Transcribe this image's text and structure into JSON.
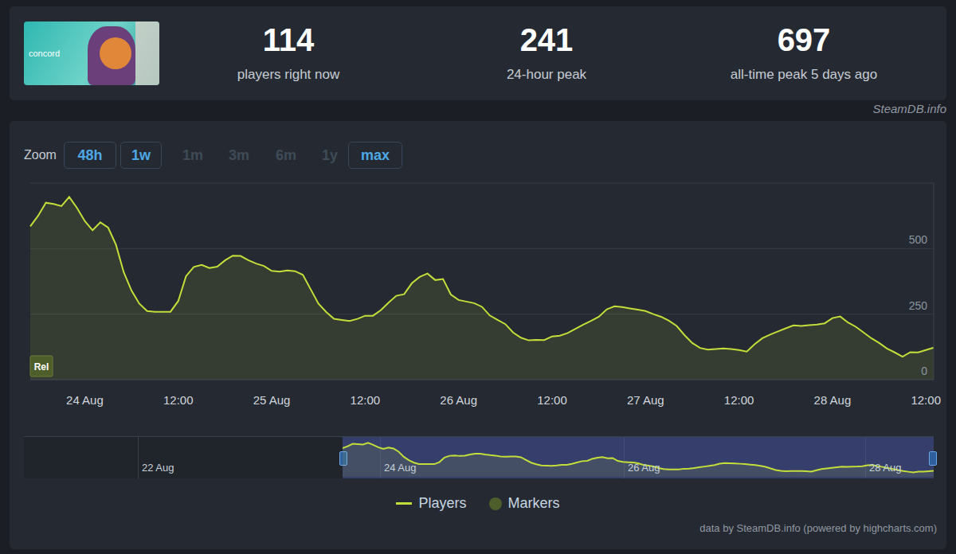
{
  "header": {
    "thumbnail_text": "concord",
    "stats": [
      {
        "value": 114,
        "label": "players right now"
      },
      {
        "value": 241,
        "label": "24-hour peak"
      },
      {
        "value": 697,
        "label": "all-time peak 5 days ago"
      }
    ],
    "source": "SteamDB.info"
  },
  "zoom": {
    "label": "Zoom",
    "buttons": [
      {
        "label": "48h",
        "enabled": true
      },
      {
        "label": "1w",
        "enabled": true
      },
      {
        "label": "1m",
        "enabled": false
      },
      {
        "label": "3m",
        "enabled": false
      },
      {
        "label": "6m",
        "enabled": false
      },
      {
        "label": "1y",
        "enabled": false
      },
      {
        "label": "max",
        "enabled": true
      }
    ]
  },
  "chart_data": {
    "type": "area",
    "categories": [
      null,
      null,
      null,
      null,
      null,
      null,
      null,
      "24 Aug",
      null,
      null,
      null,
      null,
      null,
      null,
      null,
      null,
      null,
      null,
      null,
      "12:00",
      null,
      null,
      null,
      null,
      null,
      null,
      null,
      null,
      null,
      null,
      null,
      "25 Aug",
      null,
      null,
      null,
      null,
      null,
      null,
      null,
      null,
      null,
      null,
      null,
      "12:00",
      null,
      null,
      null,
      null,
      null,
      null,
      null,
      null,
      null,
      null,
      null,
      "26 Aug",
      null,
      null,
      null,
      null,
      null,
      null,
      null,
      null,
      null,
      null,
      null,
      "12:00",
      null,
      null,
      null,
      null,
      null,
      null,
      null,
      null,
      null,
      null,
      null,
      "27 Aug",
      null,
      null,
      null,
      null,
      null,
      null,
      null,
      null,
      null,
      null,
      null,
      "12:00",
      null,
      null,
      null,
      null,
      null,
      null,
      null,
      null,
      null,
      null,
      null,
      "28 Aug",
      null,
      null,
      null,
      null,
      null,
      null,
      null,
      null,
      null,
      null,
      null,
      "12:00",
      null
    ],
    "series": [
      {
        "name": "Players",
        "color": "#c3de3a",
        "values": [
          585,
          625,
          675,
          670,
          662,
          697,
          655,
          605,
          570,
          600,
          580,
          515,
          410,
          340,
          290,
          262,
          259,
          259,
          259,
          300,
          395,
          430,
          438,
          426,
          431,
          455,
          473,
          472,
          456,
          443,
          434,
          415,
          412,
          417,
          414,
          400,
          345,
          290,
          258,
          232,
          228,
          224,
          232,
          244,
          244,
          265,
          294,
          320,
          326,
          368,
          392,
          405,
          380,
          384,
          325,
          304,
          298,
          292,
          278,
          245,
          228,
          212,
          180,
          160,
          150,
          152,
          151,
          165,
          168,
          178,
          194,
          210,
          224,
          240,
          268,
          280,
          277,
          272,
          267,
          262,
          250,
          240,
          225,
          205,
          170,
          140,
          121,
          115,
          117,
          119,
          117,
          113,
          107,
          135,
          158,
          172,
          184,
          196,
          207,
          205,
          208,
          210,
          215,
          235,
          241,
          218,
          202,
          180,
          158,
          140,
          119,
          104,
          88,
          105,
          104,
          113,
          122
        ]
      }
    ],
    "ylim": [
      0,
      750
    ],
    "yticks": [
      0,
      250,
      500
    ],
    "grid": true,
    "legend": "bottom",
    "markers": {
      "name": "Markers",
      "color": "#4e5e2a",
      "items": [
        {
          "label": "Rel",
          "at": 0
        }
      ]
    }
  },
  "navigator": {
    "labels": [
      "22 Aug",
      "24 Aug",
      "26 Aug",
      "28 Aug"
    ]
  },
  "credit": "data by SteamDB.info (powered by highcharts.com)"
}
